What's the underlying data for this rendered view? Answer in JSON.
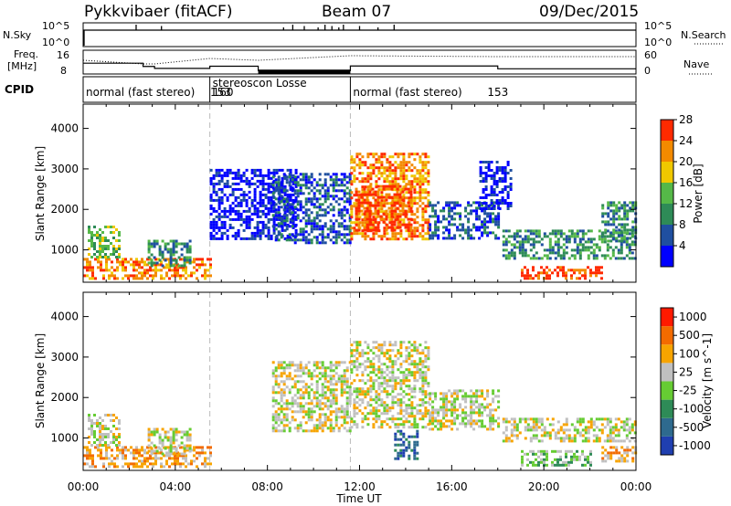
{
  "header": {
    "station": "Pykkvibaer (fitACF)",
    "beam": "Beam 07",
    "date": "09/Dec/2015"
  },
  "top_panels": {
    "nsky_label": "N.Sky",
    "nsearch_label": "N.Search",
    "nsky_ticks": [
      "10^5",
      "10^0"
    ],
    "nsearch_ticks": [
      "10^5",
      "10^0"
    ],
    "freq_label": "Freq.",
    "freq_unit": "[MHz]",
    "freq_ticks": [
      "16",
      "8"
    ],
    "nave_label": "Nave",
    "nave_ticks": [
      "60",
      "0"
    ],
    "cpid_label": "CPID",
    "cpid_segments": [
      {
        "name": "normal (fast stereo)",
        "id": "153",
        "start_h": 0.0,
        "end_h": 5.5
      },
      {
        "name": "stereoscon Losse",
        "id": "160",
        "start_h": 5.5,
        "end_h": 11.6
      },
      {
        "name": "normal (fast stereo)",
        "id": "153",
        "start_h": 11.6,
        "end_h": 24.0
      }
    ],
    "freq_steps": [
      {
        "from_h": 0.0,
        "to_h": 2.6,
        "mhz": 12.0
      },
      {
        "from_h": 2.6,
        "to_h": 3.1,
        "mhz": 10.5
      },
      {
        "from_h": 3.1,
        "to_h": 5.5,
        "mhz": 9.6
      },
      {
        "from_h": 5.5,
        "to_h": 7.6,
        "mhz": 10.6
      },
      {
        "from_h": 7.6,
        "to_h": 11.6,
        "mhz": 8.6
      },
      {
        "from_h": 11.6,
        "to_h": 18.0,
        "mhz": 10.7
      },
      {
        "from_h": 18.0,
        "to_h": 24.0,
        "mhz": 9.4
      }
    ],
    "nsky_spikes_h": [
      2.3,
      3.4,
      8.7,
      9.1,
      9.6,
      10.2,
      10.5,
      10.8,
      11.1,
      11.3,
      12.0,
      12.8,
      13.5
    ]
  },
  "chart_data": [
    {
      "type": "heatmap",
      "parameter": "Power",
      "xlabel": "Time UT",
      "ylabel": "Slant Range [km]",
      "x_range_h": [
        0,
        24
      ],
      "x_ticks": [
        "00:00",
        "04:00",
        "08:00",
        "12:00",
        "16:00",
        "20:00",
        "00:00"
      ],
      "ylim": [
        200,
        4600
      ],
      "y_ticks": [
        1000,
        2000,
        3000,
        4000
      ],
      "colorbar": {
        "label": "Power [dB]",
        "ticks": [
          "4",
          "8",
          "12",
          "16",
          "20",
          "24",
          "28"
        ],
        "colors": [
          "#0000ff",
          "#1f4fa0",
          "#2e8b57",
          "#55b848",
          "#f0c800",
          "#f38a00",
          "#ff2a00"
        ]
      },
      "regions": [
        {
          "t": [
            0.0,
            5.5
          ],
          "r": [
            300,
            800
          ],
          "level": 5
        },
        {
          "t": [
            0.2,
            1.6
          ],
          "r": [
            800,
            1600
          ],
          "level": 3
        },
        {
          "t": [
            2.8,
            4.6
          ],
          "r": [
            600,
            1250
          ],
          "level": 2
        },
        {
          "t": [
            5.5,
            9.3
          ],
          "r": [
            1300,
            3000
          ],
          "level": 0
        },
        {
          "t": [
            8.2,
            11.6
          ],
          "r": [
            1200,
            2900
          ],
          "level": 1
        },
        {
          "t": [
            11.6,
            15.0
          ],
          "r": [
            1300,
            3400
          ],
          "level": 5
        },
        {
          "t": [
            11.8,
            14.2
          ],
          "r": [
            1500,
            2600
          ],
          "level": 6
        },
        {
          "t": [
            15.0,
            18.0
          ],
          "r": [
            1300,
            2200
          ],
          "level": 1
        },
        {
          "t": [
            17.2,
            18.6
          ],
          "r": [
            2000,
            3200
          ],
          "level": 0
        },
        {
          "t": [
            18.2,
            24.0
          ],
          "r": [
            800,
            1500
          ],
          "level": 2
        },
        {
          "t": [
            19.0,
            22.5
          ],
          "r": [
            300,
            600
          ],
          "level": 6
        },
        {
          "t": [
            22.5,
            24.0
          ],
          "r": [
            1200,
            2200
          ],
          "level": 2
        }
      ]
    },
    {
      "type": "heatmap",
      "parameter": "Velocity",
      "xlabel": "Time UT",
      "ylabel": "Slant Range [km]",
      "x_range_h": [
        0,
        24
      ],
      "x_ticks": [
        "00:00",
        "04:00",
        "08:00",
        "12:00",
        "16:00",
        "20:00",
        "00:00"
      ],
      "ylim": [
        200,
        4600
      ],
      "y_ticks": [
        1000,
        2000,
        3000,
        4000
      ],
      "colorbar": {
        "label": "Velocity [m s^-1]",
        "ticks": [
          "1000",
          "500",
          "100",
          "25",
          "-25",
          "-100",
          "-500",
          "-1000"
        ],
        "colors": [
          "#1f3fb0",
          "#2e6a8e",
          "#2e8b57",
          "#66cc33",
          "#c0c0c0",
          "#f7a400",
          "#f36b00",
          "#ff1a00"
        ]
      },
      "regions": [
        {
          "t": [
            0.0,
            5.5
          ],
          "r": [
            300,
            800
          ],
          "level": 5
        },
        {
          "t": [
            0.2,
            1.6
          ],
          "r": [
            800,
            1600
          ],
          "level": 4
        },
        {
          "t": [
            2.8,
            4.6
          ],
          "r": [
            600,
            1250
          ],
          "level": 4
        },
        {
          "t": [
            8.2,
            11.6
          ],
          "r": [
            1200,
            2900
          ],
          "level": 4
        },
        {
          "t": [
            11.6,
            15.0
          ],
          "r": [
            1300,
            3400
          ],
          "level": 4
        },
        {
          "t": [
            13.5,
            14.5
          ],
          "r": [
            500,
            1200
          ],
          "level": 1
        },
        {
          "t": [
            15.0,
            18.0
          ],
          "r": [
            1200,
            2200
          ],
          "level": 4
        },
        {
          "t": [
            18.2,
            24.0
          ],
          "r": [
            900,
            1500
          ],
          "level": 4
        },
        {
          "t": [
            19.0,
            22.0
          ],
          "r": [
            300,
            700
          ],
          "level": 3
        },
        {
          "t": [
            22.5,
            24.0
          ],
          "r": [
            400,
            800
          ],
          "level": 5
        }
      ]
    }
  ]
}
